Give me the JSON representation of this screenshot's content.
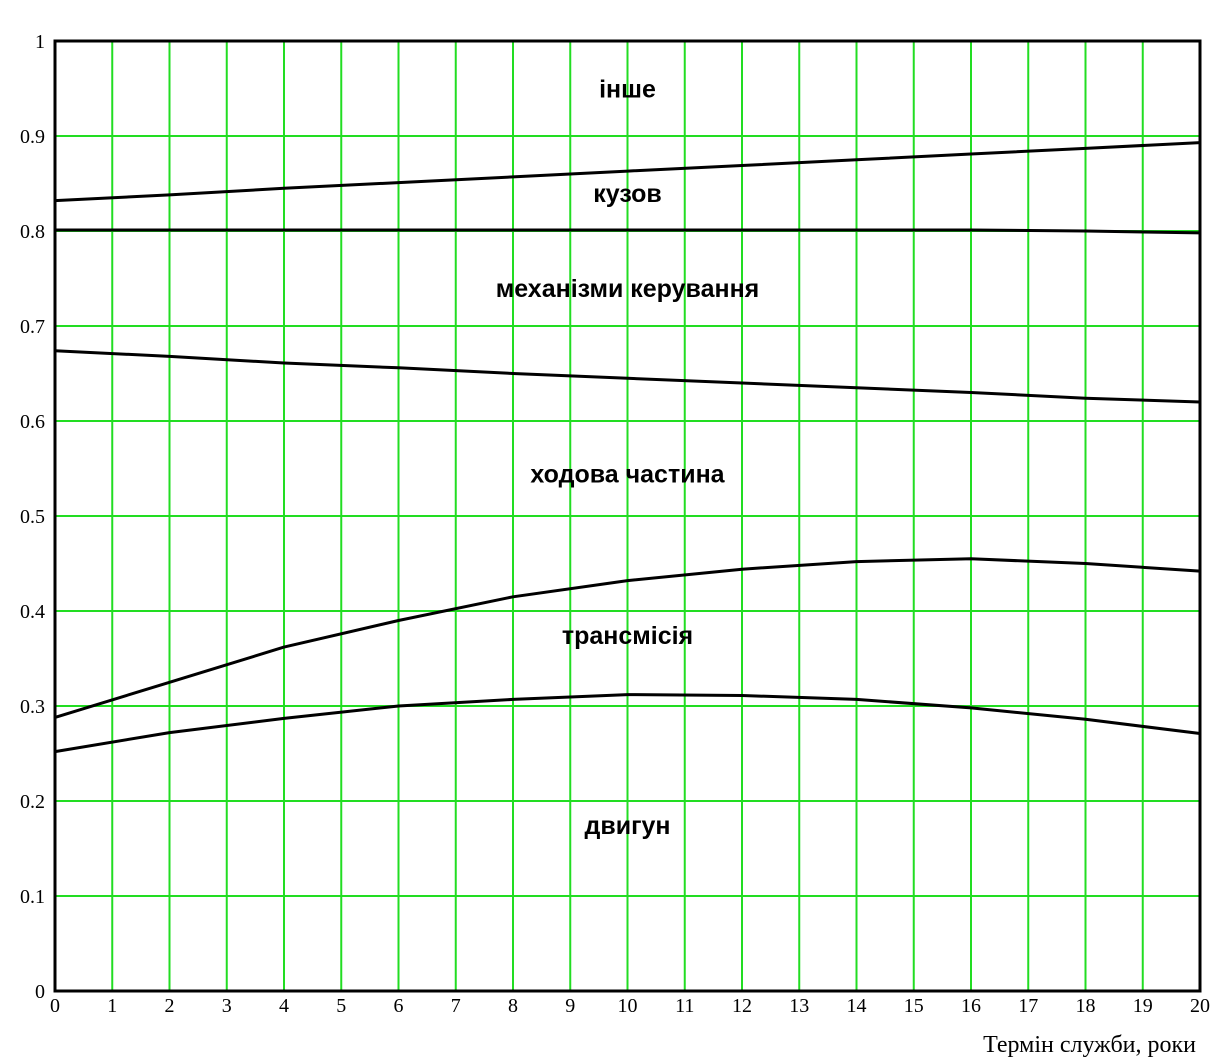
{
  "chart_data": {
    "type": "line",
    "title": "",
    "xlabel": "Термін служби, роки",
    "ylabel": "",
    "xlim": [
      0,
      20
    ],
    "ylim": [
      0,
      1
    ],
    "grid": true,
    "grid_color": "#22dd22",
    "line_color": "#000000",
    "x_ticks": [
      0,
      1,
      2,
      3,
      4,
      5,
      6,
      7,
      8,
      9,
      10,
      11,
      12,
      13,
      14,
      15,
      16,
      17,
      18,
      19,
      20
    ],
    "y_ticks": [
      0,
      0.1,
      0.2,
      0.3,
      0.4,
      0.5,
      0.6,
      0.7,
      0.8,
      0.9,
      1
    ],
    "y_tick_labels": [
      "0",
      "0.1",
      "0.2",
      "0.3",
      "0.4",
      "0.5",
      "0.6",
      "0.7",
      "0.8",
      "0.9",
      "1"
    ],
    "x": [
      0,
      2,
      4,
      6,
      8,
      10,
      12,
      14,
      16,
      18,
      20
    ],
    "series": [
      {
        "values": [
          0.252,
          0.272,
          0.287,
          0.3,
          0.307,
          0.312,
          0.311,
          0.307,
          0.298,
          0.286,
          0.271
        ]
      },
      {
        "values": [
          0.288,
          0.325,
          0.362,
          0.39,
          0.415,
          0.432,
          0.444,
          0.452,
          0.455,
          0.45,
          0.442
        ]
      },
      {
        "values": [
          0.674,
          0.668,
          0.661,
          0.656,
          0.65,
          0.645,
          0.64,
          0.635,
          0.63,
          0.624,
          0.62
        ]
      },
      {
        "values": [
          0.801,
          0.801,
          0.801,
          0.801,
          0.801,
          0.801,
          0.801,
          0.801,
          0.801,
          0.8,
          0.798
        ]
      },
      {
        "values": [
          0.832,
          0.838,
          0.845,
          0.851,
          0.857,
          0.863,
          0.869,
          0.875,
          0.881,
          0.887,
          0.893
        ]
      }
    ],
    "region_labels": [
      {
        "text": "двигун",
        "x": 10,
        "y": 0.175
      },
      {
        "text": "трансмісія",
        "x": 10,
        "y": 0.375
      },
      {
        "text": "ходова частина",
        "x": 10,
        "y": 0.545
      },
      {
        "text": "механізми керування",
        "x": 10,
        "y": 0.74
      },
      {
        "text": "кузов",
        "x": 10,
        "y": 0.84
      },
      {
        "text": "інше",
        "x": 10,
        "y": 0.95
      }
    ]
  }
}
